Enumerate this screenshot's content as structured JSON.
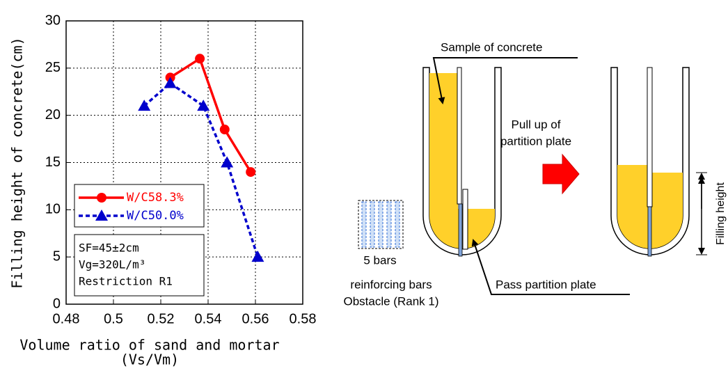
{
  "chart_data": {
    "type": "line",
    "y_label": "Filling height of concrete(cm)",
    "x_label": "Volume ratio of sand and mortar",
    "x_label_2": "(Vs/Vm)",
    "xlim": [
      0.48,
      0.58
    ],
    "xticks": [
      0.48,
      0.5,
      0.52,
      0.54,
      0.56,
      0.58
    ],
    "ylim": [
      0,
      30
    ],
    "yticks": [
      0,
      5,
      10,
      15,
      20,
      25,
      30
    ],
    "grid": true,
    "legend": "center left",
    "series": [
      {
        "name": "W/C58.3%",
        "color": "#ff0000",
        "marker": "circle",
        "dashed": false,
        "x": [
          0.524,
          0.5365,
          0.547,
          0.558
        ],
        "values": [
          24,
          26,
          18.5,
          14
        ]
      },
      {
        "name": "W/C50.0%",
        "color": "#0000cc",
        "marker": "triangle",
        "dashed": true,
        "x": [
          0.513,
          0.524,
          0.538,
          0.548,
          0.561
        ],
        "values": [
          21,
          23.4,
          21,
          15,
          5
        ]
      }
    ],
    "annotations": [
      "SF=45±2cm",
      "Vg=320L/m³",
      "Restriction R1"
    ]
  },
  "diagram": {
    "sample_label": "Sample of concrete",
    "pull_label_1": "Pull up of",
    "pull_label_2": "partition plate",
    "bars_label": "5 bars",
    "obstacle_label_1": "reinforcing bars",
    "obstacle_label_2": "Obstacle (Rank 1)",
    "pass_label": "Pass partition plate",
    "filling_label": "Filling height"
  }
}
